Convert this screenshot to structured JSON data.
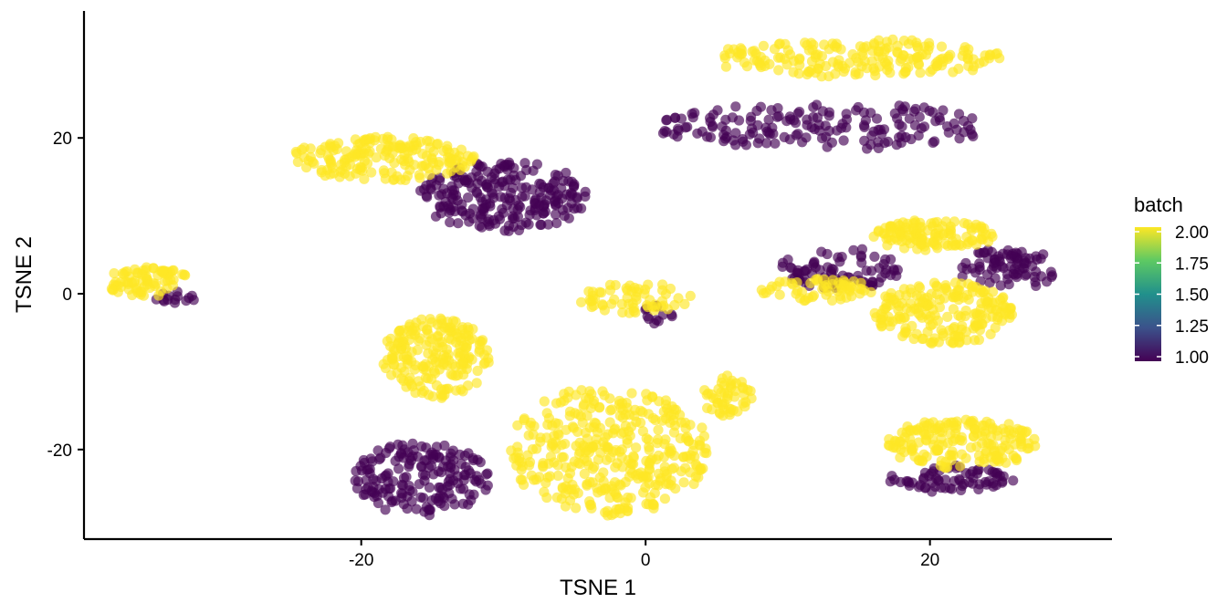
{
  "chart_data": {
    "type": "scatter",
    "xlabel": "TSNE 1",
    "ylabel": "TSNE 2",
    "xlim": [
      -39.5,
      32.8
    ],
    "ylim": [
      -31.5,
      36.3
    ],
    "x_ticks": [
      -20,
      0,
      20
    ],
    "x_tick_labels": [
      "-20",
      "0",
      "20"
    ],
    "y_ticks": [
      -20,
      0,
      20
    ],
    "y_tick_labels": [
      "-20",
      "0",
      "20"
    ],
    "grid": false,
    "point_opacity": 0.65,
    "color_by": "batch",
    "colorscale": "viridis",
    "colors": {
      "low": "#440154",
      "mid": "#21908c",
      "high": "#fde725"
    },
    "legend": {
      "title": "batch",
      "placement": "right",
      "range": [
        1.0,
        2.0
      ],
      "ticks": [
        2.0,
        1.75,
        1.5,
        1.25,
        1.0
      ],
      "tick_labels": [
        "2.00",
        "1.75",
        "1.50",
        "1.25",
        "1.00"
      ]
    },
    "clusters": [
      {
        "batch": 2,
        "x": [
          4.5,
          25.5
        ],
        "y": [
          27.8,
          32.7
        ],
        "n": 190
      },
      {
        "batch": 1,
        "x": [
          0.5,
          24.5
        ],
        "y": [
          18.5,
          24.5
        ],
        "n": 170
      },
      {
        "batch": 2,
        "x": [
          -25.0,
          -12.0
        ],
        "y": [
          14.5,
          20.2
        ],
        "n": 180
      },
      {
        "batch": 1,
        "x": [
          -16.0,
          -4.0
        ],
        "y": [
          8.0,
          17.0
        ],
        "n": 230
      },
      {
        "batch": 2,
        "x": [
          -38.0,
          -32.0
        ],
        "y": [
          -0.5,
          3.5
        ],
        "n": 75
      },
      {
        "batch": 1,
        "x": [
          -34.5,
          -31.5
        ],
        "y": [
          -1.5,
          0.5
        ],
        "n": 14
      },
      {
        "batch": 2,
        "x": [
          -18.5,
          -11.0
        ],
        "y": [
          -13.5,
          -3.0
        ],
        "n": 200
      },
      {
        "batch": 2,
        "x": [
          -5.0,
          3.5
        ],
        "y": [
          -2.5,
          1.5
        ],
        "n": 60
      },
      {
        "batch": 1,
        "x": [
          -1.0,
          2.0
        ],
        "y": [
          -4.0,
          -1.5
        ],
        "n": 12
      },
      {
        "batch": 2,
        "x": [
          -10.0,
          4.5
        ],
        "y": [
          -28.5,
          -12.0
        ],
        "n": 380
      },
      {
        "batch": 2,
        "x": [
          4.0,
          7.5
        ],
        "y": [
          -16.0,
          -10.5
        ],
        "n": 50
      },
      {
        "batch": 1,
        "x": [
          -20.5,
          -11.0
        ],
        "y": [
          -28.5,
          -19.0
        ],
        "n": 180
      },
      {
        "batch": 2,
        "x": [
          16.0,
          24.5
        ],
        "y": [
          5.5,
          9.5
        ],
        "n": 120
      },
      {
        "batch": 1,
        "x": [
          9.5,
          18.0
        ],
        "y": [
          0.5,
          6.0
        ],
        "n": 80
      },
      {
        "batch": 2,
        "x": [
          8.0,
          16.0
        ],
        "y": [
          -1.0,
          2.0
        ],
        "n": 60
      },
      {
        "batch": 2,
        "x": [
          16.0,
          26.0
        ],
        "y": [
          -6.5,
          1.5
        ],
        "n": 200
      },
      {
        "batch": 1,
        "x": [
          22.0,
          29.0
        ],
        "y": [
          0.5,
          6.0
        ],
        "n": 80
      },
      {
        "batch": 2,
        "x": [
          17.0,
          27.5
        ],
        "y": [
          -22.5,
          -16.0
        ],
        "n": 180
      },
      {
        "batch": 1,
        "x": [
          17.0,
          26.0
        ],
        "y": [
          -25.5,
          -22.0
        ],
        "n": 70
      }
    ]
  }
}
